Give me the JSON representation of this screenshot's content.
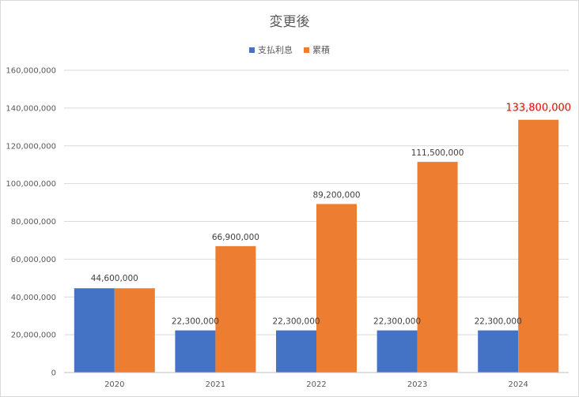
{
  "chart_data": {
    "type": "bar",
    "title": "変更後",
    "categories": [
      "2020",
      "2021",
      "2022",
      "2023",
      "2024"
    ],
    "series": [
      {
        "name": "支払利息",
        "color": "#4472c4",
        "values": [
          44600000,
          22300000,
          22300000,
          22300000,
          22300000
        ],
        "labels": [
          "",
          "22,300,000",
          "22,300,000",
          "22,300,000",
          "22,300,000"
        ]
      },
      {
        "name": "累積",
        "color": "#ed7d31",
        "values": [
          44600000,
          66900000,
          89200000,
          111500000,
          133800000
        ],
        "labels": [
          "",
          "66,900,000",
          "89,200,000",
          "111,500,000",
          "133,800,000"
        ]
      }
    ],
    "pair_labels": [
      "44,600,000",
      "",
      "",
      "",
      ""
    ],
    "highlight_label": {
      "series": 1,
      "index": 4,
      "color": "#ff0000"
    },
    "y_ticks": [
      "0",
      "20,000,000",
      "40,000,000",
      "60,000,000",
      "80,000,000",
      "100,000,000",
      "120,000,000",
      "140,000,000",
      "160,000,000"
    ],
    "ylim": [
      0,
      160000000
    ],
    "grid": true,
    "legend_position": "top-center",
    "xlabel": "",
    "ylabel": ""
  }
}
